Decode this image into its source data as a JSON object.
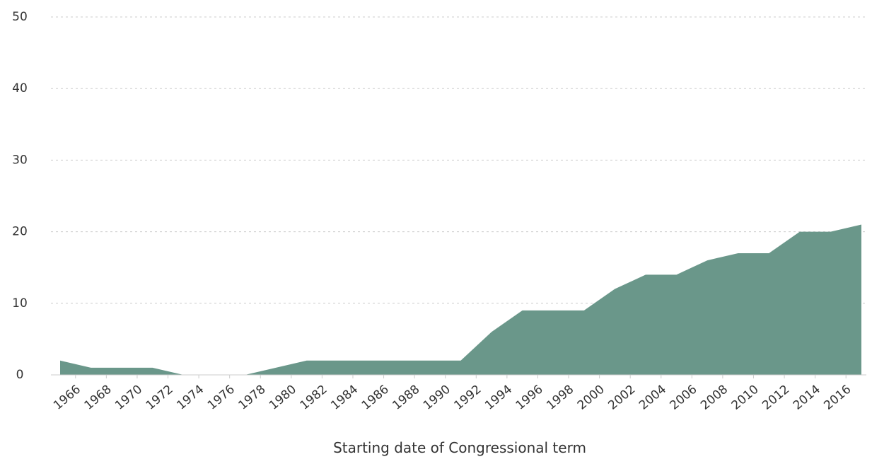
{
  "chart_data": {
    "type": "area",
    "x_label": "Starting date of Congressional term",
    "x": [
      1965,
      1967,
      1969,
      1971,
      1973,
      1975,
      1977,
      1979,
      1981,
      1983,
      1985,
      1987,
      1989,
      1991,
      1993,
      1995,
      1997,
      1999,
      2001,
      2003,
      2005,
      2007,
      2009,
      2011,
      2013,
      2015,
      2017
    ],
    "values": [
      2,
      1,
      1,
      1,
      0,
      0,
      0,
      1,
      2,
      2,
      2,
      2,
      2,
      2,
      6,
      9,
      9,
      9,
      12,
      14,
      14,
      16,
      17,
      17,
      20,
      20,
      21
    ],
    "color": "#6a978a",
    "xlim": [
      1965,
      2017
    ],
    "xticks": [
      1966,
      1968,
      1970,
      1972,
      1974,
      1976,
      1978,
      1980,
      1982,
      1984,
      1986,
      1988,
      1990,
      1992,
      1994,
      1996,
      1998,
      2000,
      2002,
      2004,
      2006,
      2008,
      2010,
      2012,
      2014,
      2016
    ],
    "ylim": [
      0,
      50
    ],
    "yticks": [
      0,
      10,
      20,
      30,
      40,
      50
    ],
    "grid": true
  }
}
